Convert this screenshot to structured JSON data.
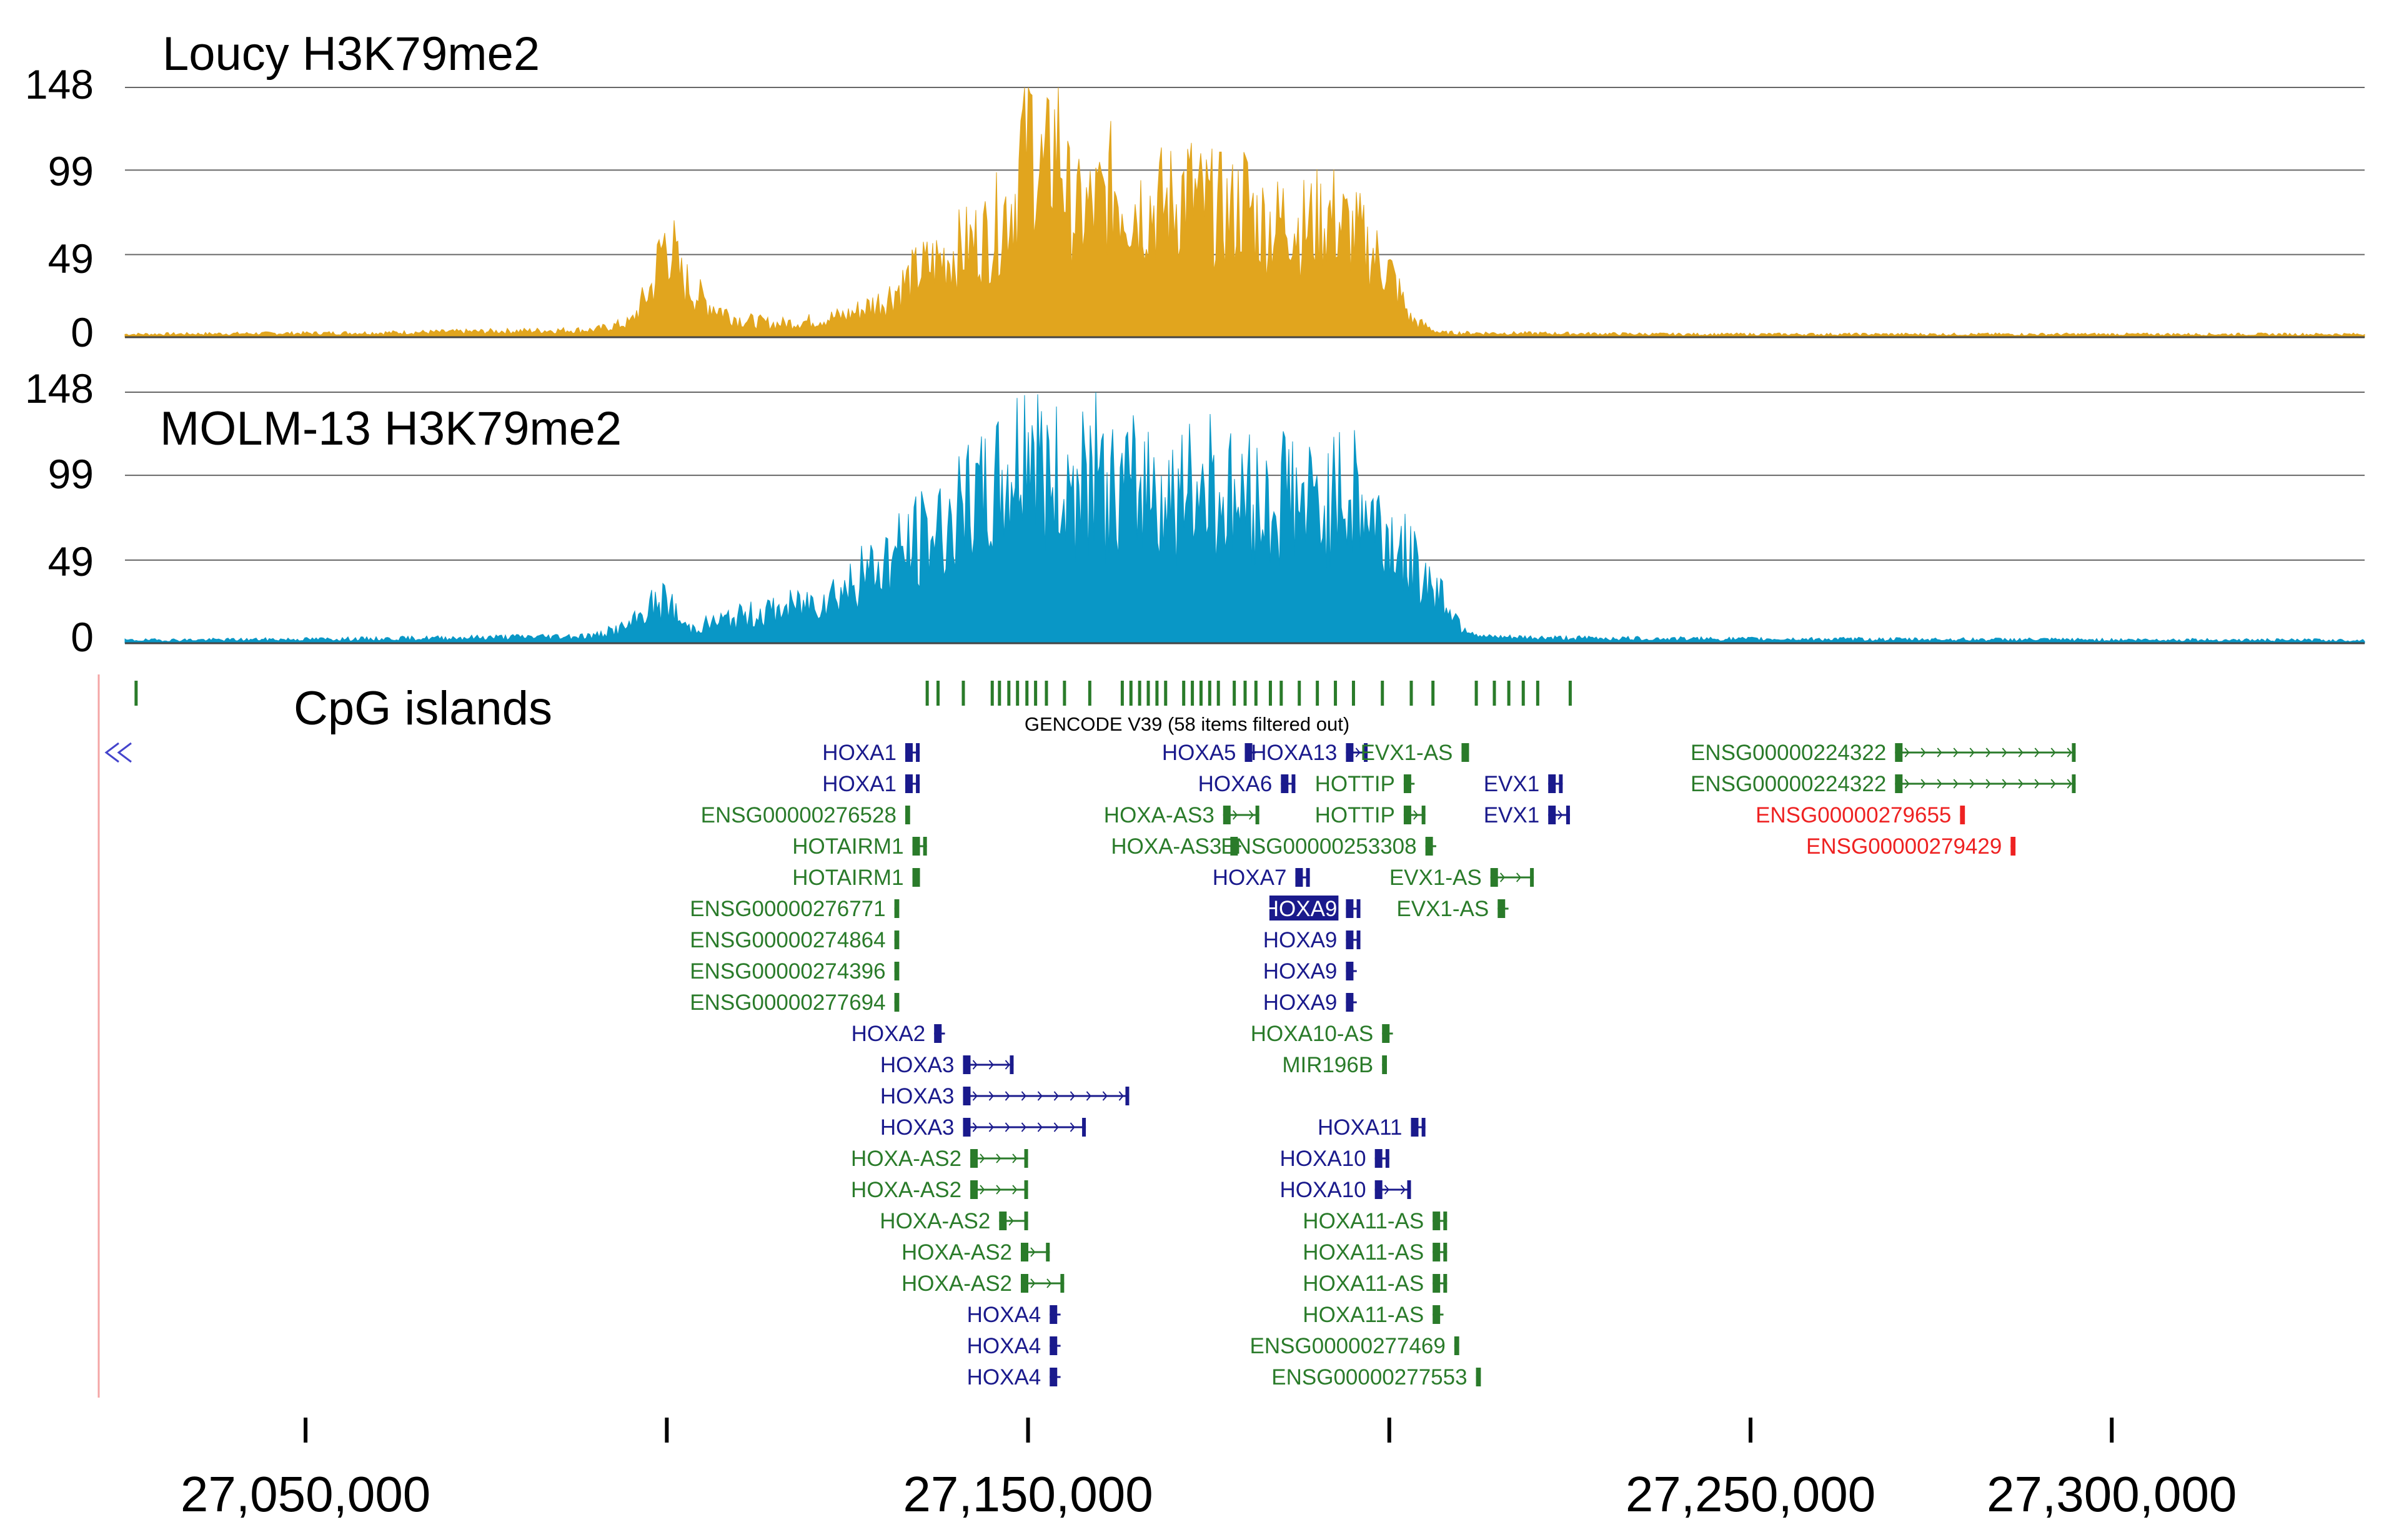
{
  "chart_data": {
    "type": "area",
    "locus": {
      "start": 27025000,
      "end": 27335000
    },
    "tracks": [
      {
        "key": "loucy",
        "name": "Loucy H3K79me2",
        "color": "#e1a51e",
        "ylim": [
          0,
          148
        ],
        "yticks": [
          "148",
          "99",
          "49",
          "0"
        ],
        "profile": [
          [
            27025000,
            2
          ],
          [
            27060000,
            3
          ],
          [
            27090000,
            5
          ],
          [
            27095000,
            10
          ],
          [
            27098000,
            35
          ],
          [
            27100000,
            62
          ],
          [
            27102000,
            40
          ],
          [
            27105000,
            25
          ],
          [
            27110000,
            12
          ],
          [
            27115000,
            9
          ],
          [
            27120000,
            11
          ],
          [
            27125000,
            15
          ],
          [
            27130000,
            25
          ],
          [
            27135000,
            45
          ],
          [
            27140000,
            58
          ],
          [
            27145000,
            70
          ],
          [
            27148000,
            95
          ],
          [
            27150000,
            118
          ],
          [
            27153000,
            105
          ],
          [
            27157000,
            82
          ],
          [
            27162000,
            95
          ],
          [
            27167000,
            88
          ],
          [
            27172000,
            92
          ],
          [
            27177000,
            85
          ],
          [
            27182000,
            78
          ],
          [
            27187000,
            72
          ],
          [
            27192000,
            82
          ],
          [
            27196000,
            65
          ],
          [
            27200000,
            45
          ],
          [
            27203000,
            12
          ],
          [
            27207000,
            3
          ],
          [
            27240000,
            2
          ],
          [
            27335000,
            2
          ]
        ],
        "peaks": [
          [
            27100000,
            65
          ],
          [
            27150000,
            148
          ],
          [
            27154000,
            140
          ],
          [
            27162000,
            102
          ],
          [
            27172000,
            100
          ],
          [
            27180000,
            95
          ],
          [
            27186000,
            85
          ],
          [
            27195000,
            70
          ]
        ]
      },
      {
        "key": "molm",
        "name": "MOLM-13 H3K79me2",
        "color": "#0997c6",
        "ylim": [
          0,
          148
        ],
        "yticks": [
          "148",
          "99",
          "49",
          "0"
        ],
        "profile": [
          [
            27025000,
            2
          ],
          [
            27060000,
            3
          ],
          [
            27090000,
            5
          ],
          [
            27095000,
            12
          ],
          [
            27098000,
            26
          ],
          [
            27100000,
            22
          ],
          [
            27103000,
            10
          ],
          [
            27110000,
            18
          ],
          [
            27115000,
            22
          ],
          [
            27120000,
            28
          ],
          [
            27125000,
            38
          ],
          [
            27130000,
            55
          ],
          [
            27135000,
            70
          ],
          [
            27140000,
            85
          ],
          [
            27145000,
            100
          ],
          [
            27148000,
            115
          ],
          [
            27150000,
            130
          ],
          [
            27153000,
            110
          ],
          [
            27160000,
            100
          ],
          [
            27165000,
            105
          ],
          [
            27170000,
            98
          ],
          [
            27175000,
            102
          ],
          [
            27180000,
            96
          ],
          [
            27185000,
            92
          ],
          [
            27190000,
            94
          ],
          [
            27195000,
            98
          ],
          [
            27200000,
            72
          ],
          [
            27203000,
            55
          ],
          [
            27207000,
            35
          ],
          [
            27210000,
            12
          ],
          [
            27213000,
            4
          ],
          [
            27240000,
            3
          ],
          [
            27335000,
            2
          ]
        ],
        "peaks": [
          [
            27100000,
            30
          ],
          [
            27150000,
            142
          ],
          [
            27159000,
            120
          ],
          [
            27167000,
            115
          ],
          [
            27175000,
            118
          ],
          [
            27186000,
            112
          ],
          [
            27195000,
            103
          ]
        ]
      }
    ],
    "x_axis": {
      "ticks": [
        {
          "pos": 27050000,
          "label": "27,050,000"
        },
        {
          "pos": 27100000,
          "label": ""
        },
        {
          "pos": 27150000,
          "label": "27,150,000"
        },
        {
          "pos": 27200000,
          "label": ""
        },
        {
          "pos": 27250000,
          "label": "27,250,000"
        },
        {
          "pos": 27300000,
          "label": "27,300,000"
        }
      ]
    },
    "cpg_islands": {
      "label": "CpG islands",
      "color": "#2a7b2a",
      "positions": [
        27026500,
        27136000,
        27137500,
        27141000,
        27145000,
        27146000,
        27147300,
        27148500,
        27149800,
        27151000,
        27152500,
        27155000,
        27158500,
        27163000,
        27164200,
        27165400,
        27166600,
        27167800,
        27169000,
        27171500,
        27172700,
        27173900,
        27175100,
        27176300,
        27178500,
        27180000,
        27181500,
        27183500,
        27185000,
        27187500,
        27190000,
        27192500,
        27195000,
        27199000,
        27203000,
        27206000,
        27212000,
        27214500,
        27216500,
        27218500,
        27220500,
        27225000
      ]
    },
    "gene_track": {
      "header": "GENCODE V39 (58 items filtered out)",
      "genes": [
        {
          "name": "HOXA1",
          "start": 27133000,
          "end": 27135000,
          "row": 0,
          "kind": "coding"
        },
        {
          "name": "HOXA5",
          "start": 27180000,
          "end": 27181500,
          "row": 0,
          "kind": "coding"
        },
        {
          "name": "HOXA13",
          "start": 27194000,
          "end": 27197000,
          "row": 0,
          "kind": "coding"
        },
        {
          "name": "EVX1-AS",
          "start": 27210000,
          "end": 27211000,
          "row": 0,
          "kind": "noncoding"
        },
        {
          "name": "ENSG00000224322",
          "start": 27270000,
          "end": 27295000,
          "row": 0,
          "kind": "noncoding"
        },
        {
          "name": "HOXA1",
          "start": 27133000,
          "end": 27135000,
          "row": 1,
          "kind": "coding"
        },
        {
          "name": "HOXA6",
          "start": 27185000,
          "end": 27187000,
          "row": 1,
          "kind": "coding"
        },
        {
          "name": "HOTTIP",
          "start": 27202000,
          "end": 27203500,
          "row": 1,
          "kind": "noncoding"
        },
        {
          "name": "EVX1",
          "start": 27222000,
          "end": 27224000,
          "row": 1,
          "kind": "coding"
        },
        {
          "name": "ENSG00000224322",
          "start": 27270000,
          "end": 27295000,
          "row": 1,
          "kind": "noncoding"
        },
        {
          "name": "ENSG00000276528",
          "start": 27133000,
          "end": 27133500,
          "row": 2,
          "kind": "noncoding"
        },
        {
          "name": "HOXA-AS3",
          "start": 27177000,
          "end": 27182000,
          "row": 2,
          "kind": "noncoding"
        },
        {
          "name": "HOTTIP",
          "start": 27202000,
          "end": 27205000,
          "row": 2,
          "kind": "noncoding"
        },
        {
          "name": "EVX1",
          "start": 27222000,
          "end": 27225000,
          "row": 2,
          "kind": "coding"
        },
        {
          "name": "ENSG00000279655",
          "start": 27279000,
          "end": 27279500,
          "row": 2,
          "kind": "other"
        },
        {
          "name": "HOTAIRM1",
          "start": 27134000,
          "end": 27136000,
          "row": 3,
          "kind": "noncoding"
        },
        {
          "name": "HOXA-AS3",
          "start": 27178000,
          "end": 27179500,
          "row": 3,
          "kind": "noncoding"
        },
        {
          "name": "ENSG00000253308",
          "start": 27205000,
          "end": 27206500,
          "row": 3,
          "kind": "noncoding"
        },
        {
          "name": "ENSG00000279429",
          "start": 27286000,
          "end": 27286500,
          "row": 3,
          "kind": "other"
        },
        {
          "name": "HOTAIRM1",
          "start": 27134000,
          "end": 27135000,
          "row": 4,
          "kind": "noncoding"
        },
        {
          "name": "HOXA7",
          "start": 27187000,
          "end": 27189000,
          "row": 4,
          "kind": "coding"
        },
        {
          "name": "EVX1-AS",
          "start": 27214000,
          "end": 27220000,
          "row": 4,
          "kind": "noncoding"
        },
        {
          "name": "ENSG00000276771",
          "start": 27131500,
          "end": 27132000,
          "row": 5,
          "kind": "noncoding"
        },
        {
          "name": "HOXA9",
          "start": 27194000,
          "end": 27196000,
          "row": 5,
          "kind": "coding",
          "highlight": true
        },
        {
          "name": "EVX1-AS",
          "start": 27215000,
          "end": 27216500,
          "row": 5,
          "kind": "noncoding"
        },
        {
          "name": "ENSG00000274864",
          "start": 27131500,
          "end": 27132000,
          "row": 6,
          "kind": "noncoding"
        },
        {
          "name": "HOXA9",
          "start": 27194000,
          "end": 27196000,
          "row": 6,
          "kind": "coding"
        },
        {
          "name": "ENSG00000274396",
          "start": 27131500,
          "end": 27132000,
          "row": 7,
          "kind": "noncoding"
        },
        {
          "name": "HOXA9",
          "start": 27194000,
          "end": 27195500,
          "row": 7,
          "kind": "coding"
        },
        {
          "name": "ENSG00000277694",
          "start": 27131500,
          "end": 27132000,
          "row": 8,
          "kind": "noncoding"
        },
        {
          "name": "HOXA9",
          "start": 27194000,
          "end": 27195500,
          "row": 8,
          "kind": "coding"
        },
        {
          "name": "HOXA2",
          "start": 27137000,
          "end": 27138500,
          "row": 9,
          "kind": "coding"
        },
        {
          "name": "HOXA10-AS",
          "start": 27199000,
          "end": 27200500,
          "row": 9,
          "kind": "noncoding"
        },
        {
          "name": "HOXA3",
          "start": 27141000,
          "end": 27148000,
          "row": 10,
          "kind": "coding"
        },
        {
          "name": "MIR196B",
          "start": 27199000,
          "end": 27199500,
          "row": 10,
          "kind": "noncoding"
        },
        {
          "name": "HOXA3",
          "start": 27141000,
          "end": 27164000,
          "row": 11,
          "kind": "coding"
        },
        {
          "name": "HOXA3",
          "start": 27141000,
          "end": 27158000,
          "row": 12,
          "kind": "coding"
        },
        {
          "name": "HOXA11",
          "start": 27203000,
          "end": 27205000,
          "row": 12,
          "kind": "coding"
        },
        {
          "name": "HOXA-AS2",
          "start": 27142000,
          "end": 27150000,
          "row": 13,
          "kind": "noncoding"
        },
        {
          "name": "HOXA10",
          "start": 27198000,
          "end": 27200000,
          "row": 13,
          "kind": "coding"
        },
        {
          "name": "HOXA-AS2",
          "start": 27142000,
          "end": 27150000,
          "row": 14,
          "kind": "noncoding"
        },
        {
          "name": "HOXA10",
          "start": 27198000,
          "end": 27203000,
          "row": 14,
          "kind": "coding"
        },
        {
          "name": "HOXA-AS2",
          "start": 27146000,
          "end": 27150000,
          "row": 15,
          "kind": "noncoding"
        },
        {
          "name": "HOXA11-AS",
          "start": 27206000,
          "end": 27208000,
          "row": 15,
          "kind": "noncoding"
        },
        {
          "name": "HOXA-AS2",
          "start": 27149000,
          "end": 27153000,
          "row": 16,
          "kind": "noncoding"
        },
        {
          "name": "HOXA11-AS",
          "start": 27206000,
          "end": 27208000,
          "row": 16,
          "kind": "noncoding"
        },
        {
          "name": "HOXA-AS2",
          "start": 27149000,
          "end": 27155000,
          "row": 17,
          "kind": "noncoding"
        },
        {
          "name": "HOXA11-AS",
          "start": 27206000,
          "end": 27208000,
          "row": 17,
          "kind": "noncoding"
        },
        {
          "name": "HOXA4",
          "start": 27153000,
          "end": 27154500,
          "row": 18,
          "kind": "coding"
        },
        {
          "name": "HOXA11-AS",
          "start": 27206000,
          "end": 27207500,
          "row": 18,
          "kind": "noncoding"
        },
        {
          "name": "HOXA4",
          "start": 27153000,
          "end": 27154500,
          "row": 19,
          "kind": "coding"
        },
        {
          "name": "ENSG00000277469",
          "start": 27209000,
          "end": 27209500,
          "row": 19,
          "kind": "noncoding"
        },
        {
          "name": "HOXA4",
          "start": 27153000,
          "end": 27154500,
          "row": 20,
          "kind": "coding"
        },
        {
          "name": "ENSG00000277553",
          "start": 27212000,
          "end": 27212500,
          "row": 20,
          "kind": "noncoding"
        }
      ]
    }
  },
  "colors": {
    "coding": "#1a1a8c",
    "noncoding": "#2a7b2a",
    "other": "#ee2222",
    "grid": "#666666",
    "baseline": "#444444",
    "axis": "#000000"
  }
}
